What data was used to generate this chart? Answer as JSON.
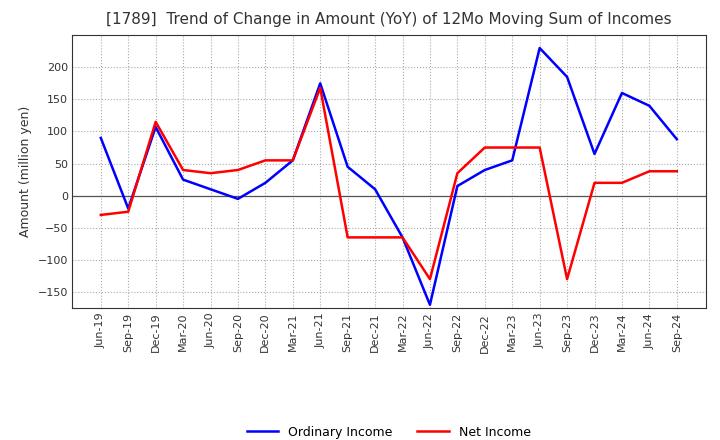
{
  "title": "[1789]  Trend of Change in Amount (YoY) of 12Mo Moving Sum of Incomes",
  "ylabel": "Amount (million yen)",
  "background_color": "#ffffff",
  "plot_bg_color": "#ffffff",
  "grid_color": "#aaaaaa",
  "x_labels": [
    "Jun-19",
    "Sep-19",
    "Dec-19",
    "Mar-20",
    "Jun-20",
    "Sep-20",
    "Dec-20",
    "Mar-21",
    "Jun-21",
    "Sep-21",
    "Dec-21",
    "Mar-22",
    "Jun-22",
    "Sep-22",
    "Dec-22",
    "Mar-23",
    "Jun-23",
    "Sep-23",
    "Dec-23",
    "Mar-24",
    "Jun-24",
    "Sep-24"
  ],
  "ordinary_income": [
    90,
    -20,
    107,
    25,
    10,
    -5,
    20,
    55,
    175,
    45,
    10,
    -65,
    -170,
    15,
    40,
    55,
    230,
    185,
    65,
    160,
    140,
    88
  ],
  "net_income": [
    -30,
    -25,
    115,
    40,
    35,
    40,
    55,
    55,
    168,
    -65,
    -65,
    -65,
    -130,
    35,
    75,
    75,
    75,
    -130,
    20,
    20,
    38,
    38
  ],
  "ylim": [
    -175,
    250
  ],
  "yticks": [
    -150,
    -100,
    -50,
    0,
    50,
    100,
    150,
    200
  ],
  "ordinary_color": "#0000ff",
  "net_color": "#ff0000",
  "line_width": 1.8,
  "title_fontsize": 11,
  "legend_fontsize": 9,
  "tick_fontsize": 8,
  "ylabel_fontsize": 9
}
